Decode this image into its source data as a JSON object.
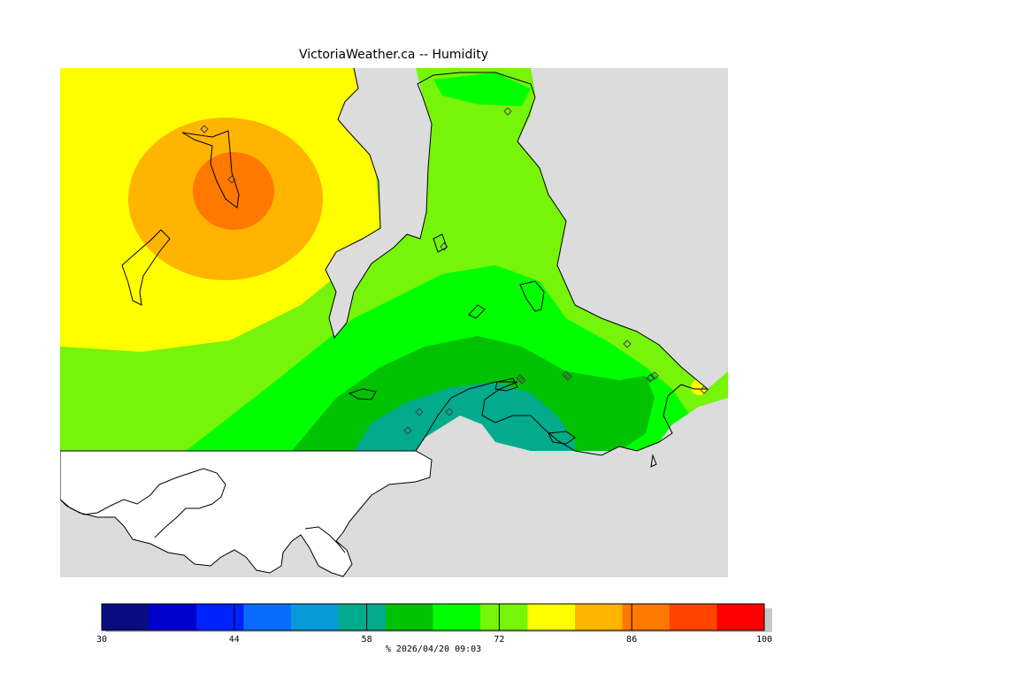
{
  "title": "VictoriaWeather.ca -- Humidity",
  "timestamp": "% 2026/04/20 09:03",
  "legend": {
    "min": 30,
    "max": 100,
    "tick_labels": [
      "30",
      "44",
      "58",
      "72",
      "86",
      "100"
    ],
    "colors": [
      "#0b0b82",
      "#0000cd",
      "#0022ff",
      "#0a6cff",
      "#0899d8",
      "#02ab8c",
      "#00c200",
      "#00ff00",
      "#76f40a",
      "#ffff00",
      "#ffb400",
      "#ff7800",
      "#ff4400",
      "#ff0000"
    ]
  },
  "map": {
    "land_masked_color": "#ffffff",
    "water_color": "#dcdcdc",
    "station_marker": "diamond",
    "station_count": 16
  }
}
